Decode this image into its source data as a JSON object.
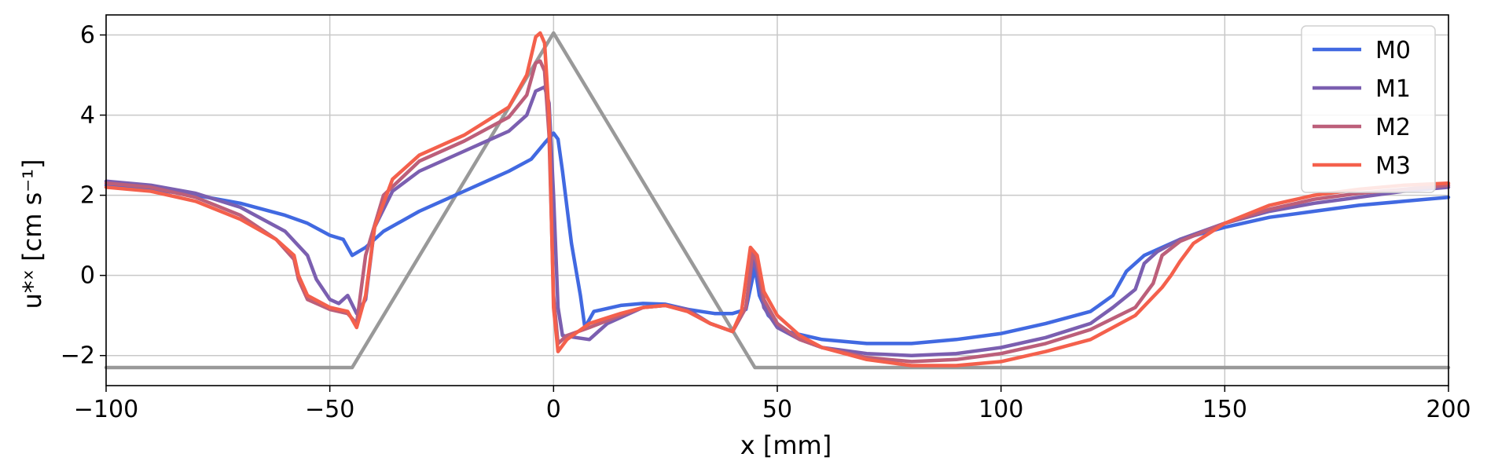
{
  "chart_data": {
    "type": "line",
    "xlabel": "x [mm]",
    "ylabel": "u*ˣ [cm s⁻¹]",
    "xlim": [
      -100,
      200
    ],
    "ylim": [
      -2.75,
      6.5
    ],
    "xticks": [
      -100,
      -50,
      0,
      50,
      100,
      150,
      200
    ],
    "yticks": [
      -2,
      0,
      2,
      4,
      6
    ],
    "x_tick_labels": [
      "−100",
      "−50",
      "0",
      "50",
      "100",
      "150",
      "200"
    ],
    "y_tick_labels": [
      "−2",
      "0",
      "2",
      "4",
      "6"
    ],
    "grid": true,
    "legend_position": "top-right",
    "series": [
      {
        "name": "M0",
        "color": "#4169e1",
        "points": [
          [
            -100,
            2.25
          ],
          [
            -90,
            2.15
          ],
          [
            -80,
            2.0
          ],
          [
            -70,
            1.8
          ],
          [
            -60,
            1.5
          ],
          [
            -55,
            1.3
          ],
          [
            -50,
            1.0
          ],
          [
            -47,
            0.9
          ],
          [
            -45,
            0.5
          ],
          [
            -42,
            0.7
          ],
          [
            -38,
            1.1
          ],
          [
            -30,
            1.6
          ],
          [
            -20,
            2.1
          ],
          [
            -10,
            2.6
          ],
          [
            -5,
            2.9
          ],
          [
            -2,
            3.3
          ],
          [
            0,
            3.55
          ],
          [
            1,
            3.4
          ],
          [
            2,
            2.6
          ],
          [
            4,
            0.8
          ],
          [
            6,
            -0.5
          ],
          [
            7,
            -1.3
          ],
          [
            9,
            -0.9
          ],
          [
            15,
            -0.75
          ],
          [
            20,
            -0.7
          ],
          [
            25,
            -0.72
          ],
          [
            30,
            -0.85
          ],
          [
            36,
            -0.95
          ],
          [
            40,
            -0.95
          ],
          [
            43,
            -0.85
          ],
          [
            45,
            0.2
          ],
          [
            46,
            -0.5
          ],
          [
            48,
            -1.0
          ],
          [
            52,
            -1.4
          ],
          [
            60,
            -1.6
          ],
          [
            70,
            -1.7
          ],
          [
            80,
            -1.7
          ],
          [
            90,
            -1.6
          ],
          [
            100,
            -1.45
          ],
          [
            110,
            -1.2
          ],
          [
            120,
            -0.9
          ],
          [
            125,
            -0.5
          ],
          [
            128,
            0.1
          ],
          [
            132,
            0.5
          ],
          [
            140,
            0.9
          ],
          [
            150,
            1.2
          ],
          [
            160,
            1.45
          ],
          [
            170,
            1.6
          ],
          [
            180,
            1.75
          ],
          [
            190,
            1.85
          ],
          [
            200,
            1.95
          ]
        ]
      },
      {
        "name": "M1",
        "color": "#7b5fb0",
        "points": [
          [
            -100,
            2.35
          ],
          [
            -90,
            2.25
          ],
          [
            -80,
            2.05
          ],
          [
            -70,
            1.7
          ],
          [
            -60,
            1.1
          ],
          [
            -55,
            0.5
          ],
          [
            -53,
            -0.1
          ],
          [
            -50,
            -0.6
          ],
          [
            -48,
            -0.7
          ],
          [
            -46,
            -0.5
          ],
          [
            -44,
            -0.95
          ],
          [
            -42,
            -0.6
          ],
          [
            -40,
            1.2
          ],
          [
            -36,
            2.1
          ],
          [
            -30,
            2.6
          ],
          [
            -20,
            3.1
          ],
          [
            -10,
            3.6
          ],
          [
            -6,
            4.0
          ],
          [
            -4,
            4.6
          ],
          [
            -2,
            4.7
          ],
          [
            -1,
            4.3
          ],
          [
            0,
            2.0
          ],
          [
            1,
            -0.8
          ],
          [
            2,
            -1.5
          ],
          [
            5,
            -1.55
          ],
          [
            8,
            -1.6
          ],
          [
            12,
            -1.2
          ],
          [
            20,
            -0.8
          ],
          [
            25,
            -0.75
          ],
          [
            30,
            -0.85
          ],
          [
            35,
            -1.2
          ],
          [
            40,
            -1.4
          ],
          [
            43,
            -0.8
          ],
          [
            44.5,
            0.4
          ],
          [
            45.5,
            0.1
          ],
          [
            47,
            -0.8
          ],
          [
            50,
            -1.3
          ],
          [
            55,
            -1.6
          ],
          [
            60,
            -1.8
          ],
          [
            70,
            -1.95
          ],
          [
            80,
            -2.0
          ],
          [
            90,
            -1.95
          ],
          [
            100,
            -1.8
          ],
          [
            110,
            -1.55
          ],
          [
            120,
            -1.2
          ],
          [
            125,
            -0.8
          ],
          [
            130,
            -0.35
          ],
          [
            132,
            0.3
          ],
          [
            135,
            0.6
          ],
          [
            140,
            0.9
          ],
          [
            150,
            1.3
          ],
          [
            160,
            1.6
          ],
          [
            170,
            1.8
          ],
          [
            180,
            1.95
          ],
          [
            190,
            2.1
          ],
          [
            200,
            2.2
          ]
        ]
      },
      {
        "name": "M2",
        "color": "#bc5f7a",
        "points": [
          [
            -100,
            2.3
          ],
          [
            -90,
            2.2
          ],
          [
            -80,
            1.95
          ],
          [
            -70,
            1.5
          ],
          [
            -62,
            0.9
          ],
          [
            -58,
            0.4
          ],
          [
            -57,
            -0.1
          ],
          [
            -55,
            -0.6
          ],
          [
            -50,
            -0.85
          ],
          [
            -46,
            -0.95
          ],
          [
            -44,
            -1.2
          ],
          [
            -42,
            0.5
          ],
          [
            -38,
            2.0
          ],
          [
            -30,
            2.85
          ],
          [
            -20,
            3.35
          ],
          [
            -10,
            3.95
          ],
          [
            -6,
            4.5
          ],
          [
            -4,
            5.3
          ],
          [
            -3,
            5.35
          ],
          [
            -2,
            5.1
          ],
          [
            -1,
            3.5
          ],
          [
            0,
            -0.5
          ],
          [
            1,
            -1.7
          ],
          [
            3,
            -1.5
          ],
          [
            8,
            -1.3
          ],
          [
            15,
            -1.0
          ],
          [
            20,
            -0.8
          ],
          [
            25,
            -0.75
          ],
          [
            30,
            -0.9
          ],
          [
            35,
            -1.2
          ],
          [
            40,
            -1.4
          ],
          [
            43,
            -0.8
          ],
          [
            44.5,
            0.6
          ],
          [
            45.5,
            0.3
          ],
          [
            47,
            -0.6
          ],
          [
            50,
            -1.2
          ],
          [
            55,
            -1.6
          ],
          [
            60,
            -1.8
          ],
          [
            70,
            -2.05
          ],
          [
            80,
            -2.15
          ],
          [
            90,
            -2.1
          ],
          [
            100,
            -1.95
          ],
          [
            110,
            -1.7
          ],
          [
            120,
            -1.35
          ],
          [
            130,
            -0.8
          ],
          [
            134,
            -0.2
          ],
          [
            136,
            0.5
          ],
          [
            140,
            0.85
          ],
          [
            150,
            1.3
          ],
          [
            160,
            1.65
          ],
          [
            170,
            1.9
          ],
          [
            180,
            2.05
          ],
          [
            190,
            2.15
          ],
          [
            200,
            2.25
          ]
        ]
      },
      {
        "name": "M3",
        "color": "#f4604c",
        "points": [
          [
            -100,
            2.2
          ],
          [
            -90,
            2.1
          ],
          [
            -80,
            1.85
          ],
          [
            -70,
            1.4
          ],
          [
            -62,
            0.9
          ],
          [
            -58,
            0.5
          ],
          [
            -57,
            0.0
          ],
          [
            -55,
            -0.5
          ],
          [
            -50,
            -0.8
          ],
          [
            -46,
            -0.9
          ],
          [
            -44,
            -1.3
          ],
          [
            -42,
            -0.5
          ],
          [
            -40,
            1.2
          ],
          [
            -36,
            2.4
          ],
          [
            -30,
            3.0
          ],
          [
            -20,
            3.5
          ],
          [
            -10,
            4.2
          ],
          [
            -6,
            5.0
          ],
          [
            -4,
            5.95
          ],
          [
            -3,
            6.05
          ],
          [
            -2,
            5.8
          ],
          [
            -1,
            4.0
          ],
          [
            0,
            -0.8
          ],
          [
            1,
            -1.9
          ],
          [
            3,
            -1.6
          ],
          [
            8,
            -1.2
          ],
          [
            15,
            -0.95
          ],
          [
            20,
            -0.8
          ],
          [
            25,
            -0.75
          ],
          [
            30,
            -0.9
          ],
          [
            35,
            -1.2
          ],
          [
            40,
            -1.4
          ],
          [
            42,
            -0.9
          ],
          [
            44,
            0.7
          ],
          [
            45.5,
            0.5
          ],
          [
            47,
            -0.4
          ],
          [
            50,
            -1.0
          ],
          [
            55,
            -1.5
          ],
          [
            60,
            -1.8
          ],
          [
            70,
            -2.1
          ],
          [
            80,
            -2.25
          ],
          [
            90,
            -2.25
          ],
          [
            100,
            -2.15
          ],
          [
            110,
            -1.9
          ],
          [
            120,
            -1.6
          ],
          [
            130,
            -1.0
          ],
          [
            136,
            -0.3
          ],
          [
            138,
            0.0
          ],
          [
            140,
            0.35
          ],
          [
            143,
            0.8
          ],
          [
            150,
            1.3
          ],
          [
            160,
            1.75
          ],
          [
            170,
            2.0
          ],
          [
            180,
            2.15
          ],
          [
            190,
            2.25
          ],
          [
            200,
            2.3
          ]
        ]
      },
      {
        "name": "",
        "color": "#999999",
        "points": [
          [
            -100,
            -2.3
          ],
          [
            -45,
            -2.3
          ],
          [
            0,
            6.05
          ],
          [
            45,
            -2.3
          ],
          [
            200,
            -2.3
          ]
        ]
      }
    ]
  }
}
